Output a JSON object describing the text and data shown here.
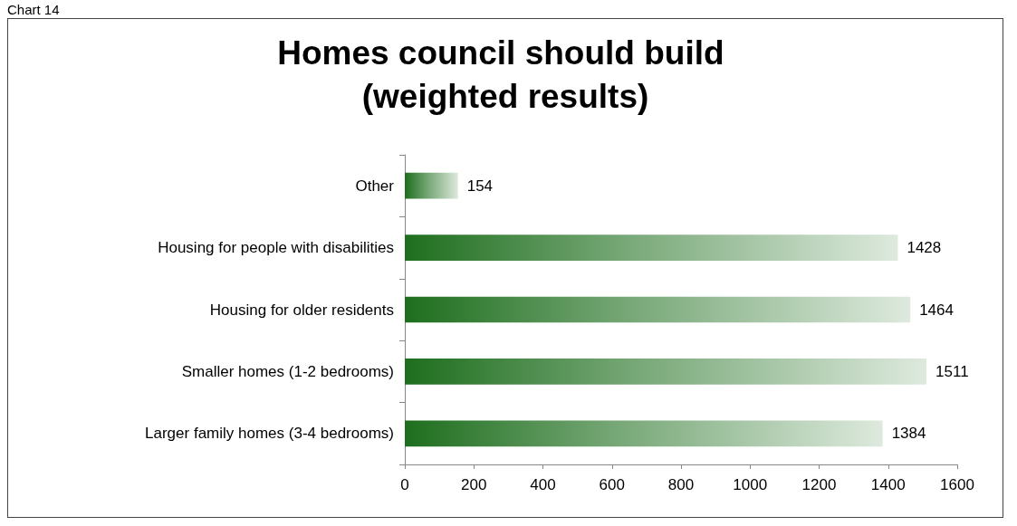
{
  "chart_data": {
    "type": "bar",
    "orientation": "horizontal",
    "title": "Homes council should build (weighted results)",
    "annotations": [
      "Chart 14"
    ],
    "categories": [
      "Other",
      "Housing for people with disabilities",
      "Housing for older residents",
      "Smaller homes (1-2 bedrooms)",
      "Larger family homes (3-4 bedrooms)"
    ],
    "values": [
      154,
      1428,
      1464,
      1511,
      1384
    ],
    "color": "#1e6e1e",
    "xlim": [
      0,
      1600
    ],
    "xticks": [
      0,
      200,
      400,
      600,
      800,
      1000,
      1200,
      1400,
      1600
    ],
    "data_labels": true,
    "grid": false
  }
}
